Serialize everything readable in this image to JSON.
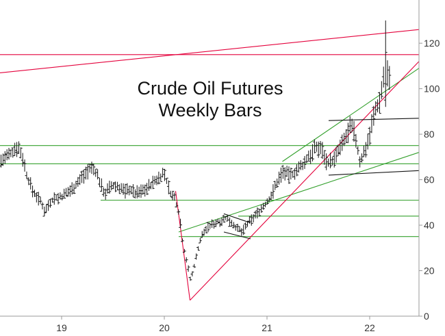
{
  "chart_data": {
    "type": "bar",
    "title": [
      "Crude Oil Futures",
      "Weekly Bars"
    ],
    "xlabel": "",
    "ylabel": "",
    "x_ticks": [
      {
        "label": "19",
        "year": 2019
      },
      {
        "label": "20",
        "year": 2020
      },
      {
        "label": "21",
        "year": 2021
      },
      {
        "label": "22",
        "year": 2022
      }
    ],
    "y_ticks": [
      0,
      20,
      40,
      60,
      80,
      100,
      120
    ],
    "xlim": [
      2018.4,
      2022.48
    ],
    "ylim": [
      0,
      139
    ],
    "y_axis_position": "right",
    "grid": false,
    "colors": {
      "bars": "#111111",
      "green_lines": "#33a02c",
      "red_lines": "#e4003b",
      "black_lines": "#111111",
      "axis": "#999999",
      "tick_text": "#333333",
      "title": "#111111"
    },
    "anchors": [
      [
        2018.4,
        68
      ],
      [
        2018.5,
        71
      ],
      [
        2018.57,
        75
      ],
      [
        2018.62,
        70
      ],
      [
        2018.66,
        62
      ],
      [
        2018.72,
        55
      ],
      [
        2018.8,
        50
      ],
      [
        2018.84,
        46
      ],
      [
        2018.88,
        50
      ],
      [
        2018.93,
        52
      ],
      [
        2018.97,
        52
      ],
      [
        2019.02,
        53
      ],
      [
        2019.1,
        56
      ],
      [
        2019.18,
        60
      ],
      [
        2019.25,
        64
      ],
      [
        2019.3,
        65
      ],
      [
        2019.34,
        63
      ],
      [
        2019.38,
        58
      ],
      [
        2019.42,
        54
      ],
      [
        2019.48,
        57
      ],
      [
        2019.55,
        57
      ],
      [
        2019.62,
        55
      ],
      [
        2019.66,
        56
      ],
      [
        2019.72,
        54
      ],
      [
        2019.78,
        55
      ],
      [
        2019.85,
        57
      ],
      [
        2019.9,
        59
      ],
      [
        2019.95,
        61
      ],
      [
        2020.0,
        63
      ],
      [
        2020.03,
        58
      ],
      [
        2020.07,
        53
      ],
      [
        2020.1,
        52
      ],
      [
        2020.12,
        49
      ],
      [
        2020.15,
        44
      ],
      [
        2020.18,
        32
      ],
      [
        2020.21,
        26
      ],
      [
        2020.23,
        22
      ],
      [
        2020.25,
        16
      ],
      [
        2020.27,
        18
      ],
      [
        2020.3,
        24
      ],
      [
        2020.33,
        30
      ],
      [
        2020.36,
        35
      ],
      [
        2020.4,
        38
      ],
      [
        2020.45,
        40
      ],
      [
        2020.5,
        41
      ],
      [
        2020.55,
        42
      ],
      [
        2020.6,
        43
      ],
      [
        2020.64,
        42
      ],
      [
        2020.68,
        40
      ],
      [
        2020.72,
        38
      ],
      [
        2020.76,
        37
      ],
      [
        2020.8,
        40
      ],
      [
        2020.84,
        42
      ],
      [
        2020.88,
        44
      ],
      [
        2020.92,
        46
      ],
      [
        2020.96,
        48
      ],
      [
        2021.0,
        50
      ],
      [
        2021.04,
        53
      ],
      [
        2021.08,
        57
      ],
      [
        2021.12,
        61
      ],
      [
        2021.16,
        64
      ],
      [
        2021.2,
        62
      ],
      [
        2021.24,
        62
      ],
      [
        2021.28,
        64
      ],
      [
        2021.32,
        65
      ],
      [
        2021.36,
        67
      ],
      [
        2021.4,
        70
      ],
      [
        2021.44,
        72
      ],
      [
        2021.48,
        74
      ],
      [
        2021.52,
        74
      ],
      [
        2021.55,
        72
      ],
      [
        2021.58,
        68
      ],
      [
        2021.62,
        68
      ],
      [
        2021.66,
        69
      ],
      [
        2021.7,
        73
      ],
      [
        2021.74,
        76
      ],
      [
        2021.78,
        80
      ],
      [
        2021.81,
        83
      ],
      [
        2021.84,
        82
      ],
      [
        2021.87,
        77
      ],
      [
        2021.9,
        68
      ],
      [
        2021.93,
        70
      ],
      [
        2021.96,
        74
      ],
      [
        2022.0,
        80
      ],
      [
        2022.03,
        87
      ],
      [
        2022.06,
        91
      ],
      [
        2022.1,
        95
      ],
      [
        2022.13,
        104
      ],
      [
        2022.155,
        112
      ],
      [
        2022.175,
        107
      ],
      [
        2022.2,
        103
      ]
    ],
    "bar_step": 0.0192,
    "bar_seed": 7,
    "big_week": {
      "x": 2022.155,
      "low": 92,
      "high": 130,
      "open": 95,
      "close": 116
    },
    "lines": [
      {
        "color": "green",
        "points": [
          [
            2018.4,
            75
          ],
          [
            2022.48,
            75
          ]
        ]
      },
      {
        "color": "green",
        "points": [
          [
            2018.4,
            67
          ],
          [
            2022.48,
            67
          ]
        ]
      },
      {
        "color": "green",
        "points": [
          [
            2019.38,
            51
          ],
          [
            2022.48,
            51
          ]
        ]
      },
      {
        "color": "green",
        "points": [
          [
            2020.72,
            44
          ],
          [
            2022.48,
            44
          ]
        ]
      },
      {
        "color": "green",
        "points": [
          [
            2020.14,
            35
          ],
          [
            2022.48,
            35
          ]
        ]
      },
      {
        "color": "green",
        "points": [
          [
            2020.14,
            37
          ],
          [
            2022.48,
            72
          ]
        ]
      },
      {
        "color": "green",
        "points": [
          [
            2021.15,
            68
          ],
          [
            2022.48,
            109
          ]
        ]
      },
      {
        "color": "red",
        "points": [
          [
            2018.4,
            115
          ],
          [
            2022.48,
            115
          ]
        ]
      },
      {
        "color": "red",
        "points": [
          [
            2018.4,
            107
          ],
          [
            2022.48,
            126
          ]
        ]
      },
      {
        "color": "red",
        "points": [
          [
            2020.25,
            7
          ],
          [
            2022.48,
            112
          ]
        ]
      },
      {
        "color": "red",
        "points": [
          [
            2020.11,
            55
          ],
          [
            2020.25,
            7
          ]
        ]
      },
      {
        "color": "black",
        "points": [
          [
            2021.6,
            86
          ],
          [
            2022.48,
            87
          ]
        ]
      },
      {
        "color": "black",
        "points": [
          [
            2021.6,
            62
          ],
          [
            2022.48,
            64
          ]
        ]
      },
      {
        "color": "black",
        "points": [
          [
            2020.58,
            45
          ],
          [
            2020.84,
            41
          ]
        ]
      },
      {
        "color": "black",
        "points": [
          [
            2020.58,
            37
          ],
          [
            2020.84,
            34
          ]
        ]
      }
    ]
  }
}
